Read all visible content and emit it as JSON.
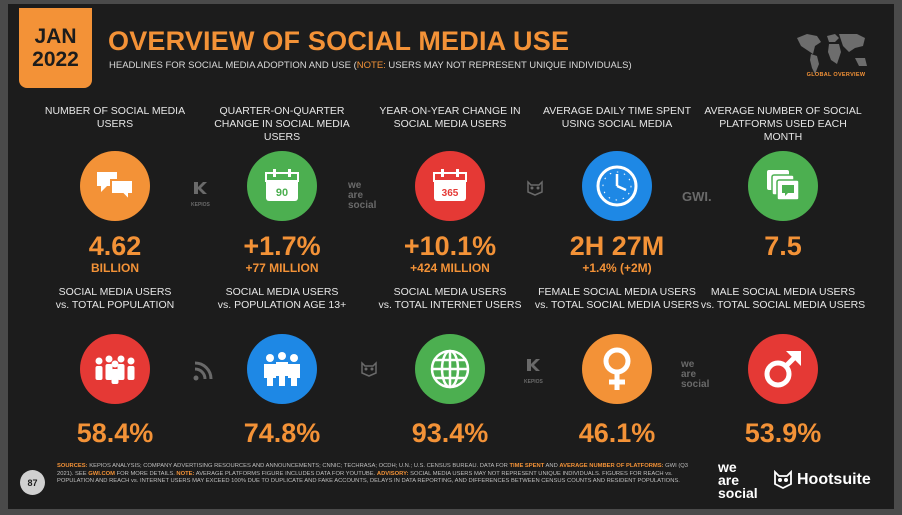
{
  "header": {
    "month": "JAN",
    "year": "2022",
    "title": "OVERVIEW OF SOCIAL MEDIA USE",
    "subtitle_main": "HEADLINES FOR SOCIAL MEDIA ADOPTION AND USE (",
    "subtitle_note": "NOTE:",
    "subtitle_rest": " USERS MAY NOT REPRESENT UNIQUE INDIVIDUALS)",
    "map_label": "GLOBAL OVERVIEW"
  },
  "row1": [
    {
      "label": "NUMBER OF SOCIAL MEDIA USERS",
      "value": "4.62",
      "sub": "BILLION",
      "icon": "chat-bubbles-icon",
      "color": "#f39237"
    },
    {
      "label": "QUARTER-ON-QUARTER CHANGE IN SOCIAL MEDIA USERS",
      "value": "+1.7%",
      "sub": "+77 MILLION",
      "icon": "calendar-90-icon",
      "icon_text": "90",
      "color": "#4caf50"
    },
    {
      "label": "YEAR-ON-YEAR CHANGE IN SOCIAL MEDIA USERS",
      "value": "+10.1%",
      "sub": "+424 MILLION",
      "icon": "calendar-365-icon",
      "icon_text": "365",
      "color": "#e53935"
    },
    {
      "label": "AVERAGE DAILY TIME SPENT USING SOCIAL MEDIA",
      "value": "2H 27M",
      "sub": "+1.4% (+2M)",
      "icon": "clock-icon",
      "color": "#1e88e5"
    },
    {
      "label": "AVERAGE NUMBER OF SOCIAL PLATFORMS USED EACH MONTH",
      "value": "7.5",
      "sub": "",
      "icon": "stacked-platforms-icon",
      "color": "#4caf50"
    }
  ],
  "row2": [
    {
      "label": "SOCIAL MEDIA USERS",
      "label2": "vs. TOTAL POPULATION",
      "value": "58.4%",
      "icon": "crowd-icon",
      "color": "#e53935"
    },
    {
      "label": "SOCIAL MEDIA USERS",
      "label2": "vs. POPULATION AGE 13+",
      "value": "74.8%",
      "icon": "adults-icon",
      "color": "#1e88e5"
    },
    {
      "label": "SOCIAL MEDIA USERS",
      "label2": "vs. TOTAL INTERNET USERS",
      "value": "93.4%",
      "icon": "globe-icon",
      "color": "#4caf50"
    },
    {
      "label": "FEMALE SOCIAL MEDIA USERS",
      "label2": "vs. TOTAL SOCIAL MEDIA USERS",
      "value": "46.1%",
      "icon": "female-symbol-icon",
      "color": "#f39237"
    },
    {
      "label": "MALE SOCIAL MEDIA USERS",
      "label2": "vs. TOTAL SOCIAL MEDIA USERS",
      "value": "53.9%",
      "icon": "male-symbol-icon",
      "color": "#e53935"
    }
  ],
  "watermarks": {
    "kepios": "KEPIOS",
    "gwi": "GWI.",
    "was1": "we",
    "was2": "are",
    "was3": "social"
  },
  "footer": {
    "page_number": "87",
    "sources_label": "SOURCES:",
    "sources_1": " KEPIOS ANALYSIS; COMPANY ADVERTISING RESOURCES AND ANNOUNCEMENTS; CNNIC; TECHRASA; OCDH; U.N.; U.S. CENSUS BUREAU. DATA FOR ",
    "time_spent": "TIME SPENT",
    "and": " AND ",
    "avg_platforms": "AVERAGE NUMBER OF PLATFORMS:",
    "sources_2": " GWI (Q3 2021). SEE ",
    "gwi_link": "GWI.COM",
    "sources_3": " FOR MORE DETAILS. ",
    "notes_label": "NOTE:",
    "notes_text": " AVERAGE PLATFORMS FIGURE INCLUDES DATA FOR YOUTUBE. ",
    "advisory_label": "ADVISORY:",
    "advisory_text": " SOCIAL MEDIA USERS MAY NOT REPRESENT UNIQUE INDIVIDUALS. FIGURES FOR REACH vs. POPULATION AND REACH vs. INTERNET USERS MAY EXCEED 100% DUE TO DUPLICATE AND FAKE ACCOUNTS, DELAYS IN DATA REPORTING, AND DIFFERENCES BETWEEN CENSUS COUNTS AND RESIDENT POPULATIONS.",
    "was_logo_1": "we",
    "was_logo_2": "are",
    "was_logo_3": "social",
    "hootsuite": "Hootsuite"
  }
}
